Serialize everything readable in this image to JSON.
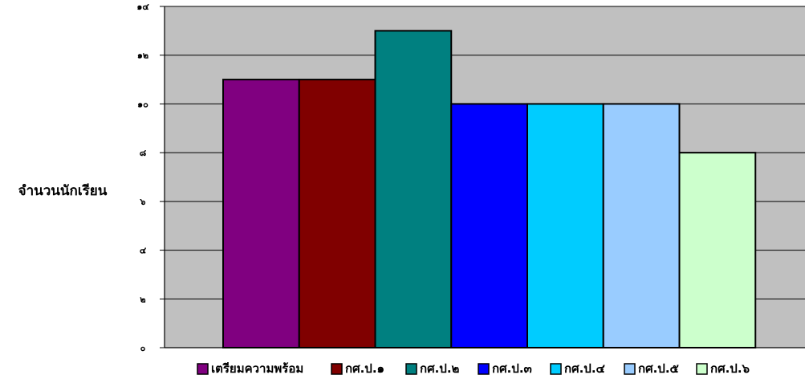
{
  "chart_data": {
    "type": "bar",
    "title": "",
    "xlabel": "",
    "ylabel": "จำนวนนักเรียน",
    "ylim": [
      0,
      14
    ],
    "yticks": [
      0,
      2,
      4,
      6,
      8,
      10,
      12,
      14
    ],
    "ytick_labels": [
      "๐",
      "๒",
      "๔",
      "๖",
      "๘",
      "๑๐",
      "๑๒",
      "๑๔"
    ],
    "grid": true,
    "legend_position": "bottom",
    "plot_background": "#C0C0C0",
    "series": [
      {
        "name": "เตรียมความพร้อม",
        "value": 11,
        "color": "#800080"
      },
      {
        "name": "กศ.ป.๑",
        "value": 11,
        "color": "#800000"
      },
      {
        "name": "กศ.ป.๒",
        "value": 13,
        "color": "#008080"
      },
      {
        "name": "กศ.ป.๓",
        "value": 10,
        "color": "#0000FF"
      },
      {
        "name": "กศ.ป.๔",
        "value": 10,
        "color": "#00CCFF"
      },
      {
        "name": "กศ.ป.๕",
        "value": 10,
        "color": "#99CCFF"
      },
      {
        "name": "กศ.ป.๖",
        "value": 8,
        "color": "#CCFFCC"
      }
    ]
  }
}
